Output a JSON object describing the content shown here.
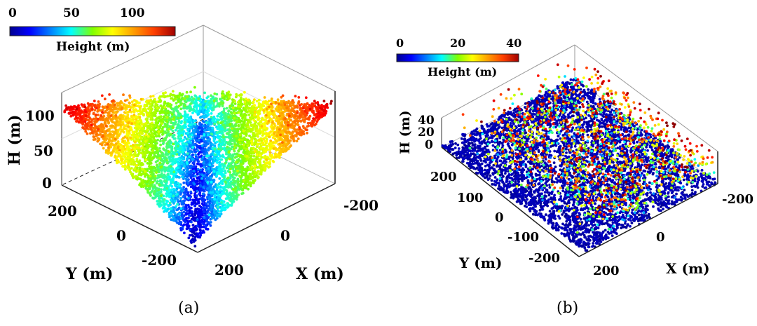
{
  "chart_data": [
    {
      "type": "scatter",
      "panel": "(a)",
      "title": "",
      "xlabel": "X (m)",
      "ylabel": "Y (m)",
      "zlabel": "H (m)",
      "xlim": [
        -250,
        250
      ],
      "ylim": [
        -250,
        250
      ],
      "zlim": [
        0,
        140
      ],
      "x_ticks": [
        "-200",
        "0",
        "200"
      ],
      "y_ticks": [
        "200",
        "0",
        "-200"
      ],
      "z_ticks": [
        "0",
        "50",
        "100"
      ],
      "colorbar": {
        "label": "Height (m)",
        "range": [
          0,
          130
        ],
        "ticks": [
          "0",
          "50",
          "100"
        ]
      },
      "surface": "valley: height increases away from the diagonal centerline, from about 5 m at the near corner to about 125 m at the far ridges",
      "legend": "colorbar top-left"
    },
    {
      "type": "scatter",
      "panel": "(b)",
      "title": "",
      "xlabel": "X (m)",
      "ylabel": "Y (m)",
      "zlabel": "H (m)",
      "xlim": [
        -250,
        250
      ],
      "ylim": [
        -250,
        250
      ],
      "zlim": [
        0,
        40
      ],
      "x_ticks": [
        "-200",
        "0",
        "200"
      ],
      "y_ticks": [
        "200",
        "100",
        "0",
        "-100",
        "-200"
      ],
      "z_ticks": [
        "0",
        "20",
        "40"
      ],
      "colorbar": {
        "label": "Height (m)",
        "range": [
          0,
          40
        ],
        "ticks": [
          "0",
          "20",
          "40"
        ]
      },
      "surface": "flat ground near 0 m with scattered trees up to about 40 m",
      "legend": "colorbar top-left"
    }
  ],
  "captions": {
    "a": "(a)",
    "b": "(b)"
  },
  "colors": {
    "jet": [
      "#00008f",
      "#0000ff",
      "#00ffff",
      "#80ff00",
      "#ffff00",
      "#ff8000",
      "#ff0000",
      "#800000"
    ]
  }
}
